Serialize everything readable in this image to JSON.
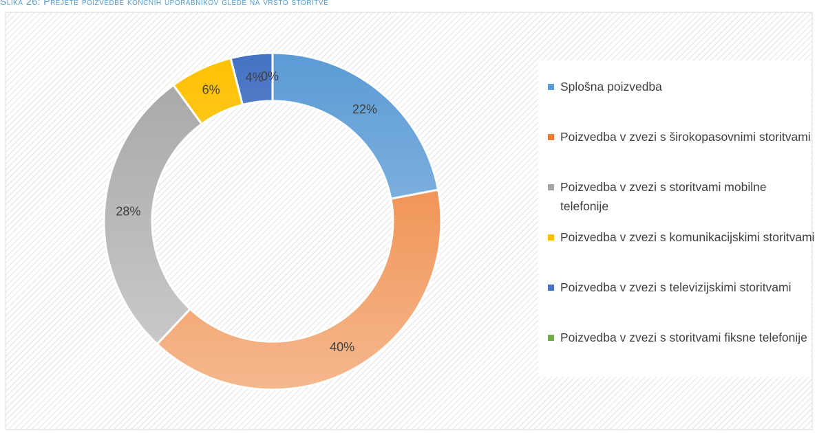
{
  "chart_data": {
    "type": "donut",
    "title": "Slika 26: Prejete poizvedbe končnih uporabnikov glede na vrsto storitve",
    "categories": [
      "Splošna poizvedba",
      "Poizvedba v zvezi s širokopasovnimi storitvami",
      "Poizvedba v zvezi s storitvami mobilne telefonije",
      "Poizvedba v zvezi s komunikacijskimi storitvami",
      "Poizvedba v zvezi s televizijskimi storitvami",
      "Poizvedba v zvezi s storitvami fiksne telefonije"
    ],
    "values": [
      22,
      40,
      28,
      6,
      4,
      0
    ],
    "value_labels": [
      "22%",
      "40%",
      "28%",
      "6%",
      "4%",
      "0%"
    ],
    "colors": [
      "#5b9bd5",
      "#ed7d31",
      "#a5a5a5",
      "#ffc000",
      "#4472c4",
      "#70ad47"
    ],
    "legend": "right"
  }
}
